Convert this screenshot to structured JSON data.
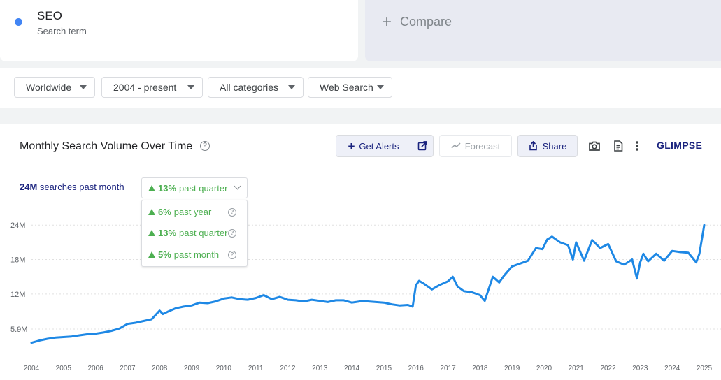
{
  "term": {
    "name": "SEO",
    "type": "Search term",
    "color": "#4285f4"
  },
  "compare": {
    "label": "Compare"
  },
  "filters": {
    "region": "Worldwide",
    "time": "2004 - present",
    "category": "All categories",
    "search_type": "Web Search"
  },
  "chart_panel": {
    "title": "Monthly Search Volume Over Time",
    "alerts_label": "Get Alerts",
    "forecast_label": "Forecast",
    "share_label": "Share",
    "brand": "GLIMPSE",
    "stats": {
      "volume": "24M",
      "volume_suffix": "searches past month",
      "selected_change": "13%",
      "selected_period": "past quarter"
    },
    "changes": [
      {
        "value": "6%",
        "period": "past year"
      },
      {
        "value": "13%",
        "period": "past quarter"
      },
      {
        "value": "5%",
        "period": "past month"
      }
    ],
    "icons": [
      "plus-icon",
      "external-link-icon",
      "trend-icon",
      "share-icon",
      "camera-icon",
      "document-icon",
      "more-vert-icon",
      "help-icon",
      "caret-down-icon",
      "chevron-down-icon",
      "triangle-up-icon"
    ]
  },
  "chart_data": {
    "type": "line",
    "series": [
      {
        "color": "#1e88e5",
        "x": [
          2004.0,
          2004.25,
          2004.5,
          2004.75,
          2005.0,
          2005.25,
          2005.5,
          2005.75,
          2006.0,
          2006.25,
          2006.5,
          2006.75,
          2007.0,
          2007.25,
          2007.5,
          2007.75,
          2008.0,
          2008.1,
          2008.25,
          2008.5,
          2008.75,
          2009.0,
          2009.25,
          2009.5,
          2009.75,
          2010.0,
          2010.25,
          2010.5,
          2010.75,
          2011.0,
          2011.25,
          2011.5,
          2011.75,
          2012.0,
          2012.25,
          2012.5,
          2012.75,
          2013.0,
          2013.25,
          2013.5,
          2013.75,
          2014.0,
          2014.25,
          2014.5,
          2014.75,
          2015.0,
          2015.25,
          2015.5,
          2015.75,
          2015.9,
          2016.0,
          2016.1,
          2016.25,
          2016.5,
          2016.75,
          2017.0,
          2017.15,
          2017.3,
          2017.5,
          2017.75,
          2018.0,
          2018.15,
          2018.4,
          2018.6,
          2018.75,
          2019.0,
          2019.25,
          2019.5,
          2019.75,
          2019.95,
          2020.1,
          2020.25,
          2020.5,
          2020.75,
          2020.9,
          2021.0,
          2021.25,
          2021.5,
          2021.75,
          2022.0,
          2022.25,
          2022.5,
          2022.75,
          2022.9,
          2023.0,
          2023.1,
          2023.25,
          2023.5,
          2023.75,
          2024.0,
          2024.25,
          2024.5,
          2024.75,
          2024.85,
          2025.0
        ],
        "y": [
          3.5,
          3.9,
          4.2,
          4.4,
          4.5,
          4.6,
          4.8,
          5.0,
          5.1,
          5.3,
          5.6,
          6.0,
          6.8,
          7.0,
          7.3,
          7.6,
          9.1,
          8.5,
          8.9,
          9.5,
          9.8,
          10.0,
          10.5,
          10.4,
          10.7,
          11.2,
          11.4,
          11.1,
          11.0,
          11.3,
          11.8,
          11.1,
          11.5,
          11.0,
          10.9,
          10.7,
          11.0,
          10.8,
          10.6,
          10.9,
          10.9,
          10.5,
          10.7,
          10.7,
          10.6,
          10.5,
          10.2,
          10.0,
          10.1,
          9.8,
          13.5,
          14.3,
          13.8,
          12.8,
          13.6,
          14.2,
          15.0,
          13.3,
          12.5,
          12.3,
          11.8,
          10.8,
          15.0,
          14.0,
          15.2,
          16.8,
          17.3,
          17.8,
          20.0,
          19.8,
          21.5,
          22.0,
          21.0,
          20.5,
          18.0,
          21.0,
          17.8,
          21.4,
          20.0,
          20.7,
          17.7,
          17.1,
          18.0,
          14.7,
          17.5,
          19.0,
          17.7,
          19.0,
          17.8,
          19.5,
          19.3,
          19.2,
          17.5,
          19.0,
          24.0
        ]
      }
    ],
    "x_ticks": [
      "2004",
      "2005",
      "2006",
      "2007",
      "2008",
      "2009",
      "2010",
      "2011",
      "2012",
      "2013",
      "2014",
      "2015",
      "2016",
      "2017",
      "2018",
      "2019",
      "2020",
      "2021",
      "2022",
      "2023",
      "2024",
      "2025"
    ],
    "y_ticks": [
      {
        "value": 5.9,
        "label": "5.9M"
      },
      {
        "value": 12,
        "label": "12M"
      },
      {
        "value": 18,
        "label": "18M"
      },
      {
        "value": 24,
        "label": "24M"
      }
    ],
    "x_range": [
      2004,
      2025
    ],
    "grid": "horizontal dotted",
    "legend": "none"
  }
}
